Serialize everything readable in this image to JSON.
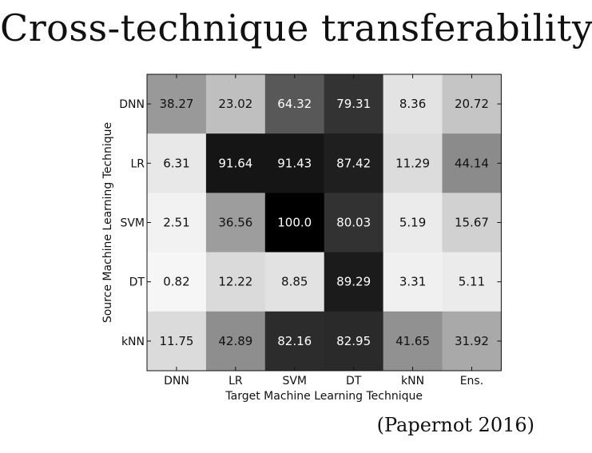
{
  "slide": {
    "title": "Cross-technique transferability",
    "citation": "(Papernot 2016)"
  },
  "chart_data": {
    "type": "heatmap",
    "title": "",
    "xlabel": "Target Machine Learning Technique",
    "ylabel": "Source Machine Learning Technique",
    "x_categories": [
      "DNN",
      "LR",
      "SVM",
      "DT",
      "kNN",
      "Ens."
    ],
    "y_categories": [
      "DNN",
      "LR",
      "SVM",
      "DT",
      "kNN"
    ],
    "values": [
      [
        38.27,
        23.02,
        64.32,
        79.31,
        8.36,
        20.72
      ],
      [
        6.31,
        91.64,
        91.43,
        87.42,
        11.29,
        44.14
      ],
      [
        2.51,
        36.56,
        100.0,
        80.03,
        5.19,
        15.67
      ],
      [
        0.82,
        12.22,
        8.85,
        89.29,
        3.31,
        5.11
      ],
      [
        11.75,
        42.89,
        82.16,
        82.95,
        41.65,
        31.92
      ]
    ],
    "value_labels": [
      [
        "38.27",
        "23.02",
        "64.32",
        "79.31",
        "8.36",
        "20.72"
      ],
      [
        "6.31",
        "91.64",
        "91.43",
        "87.42",
        "11.29",
        "44.14"
      ],
      [
        "2.51",
        "36.56",
        "100.0",
        "80.03",
        "5.19",
        "15.67"
      ],
      [
        "0.82",
        "12.22",
        "8.85",
        "89.29",
        "3.31",
        "5.11"
      ],
      [
        "11.75",
        "42.89",
        "82.16",
        "82.95",
        "41.65",
        "31.92"
      ]
    ],
    "colormap": "grayscale (higher value = darker)",
    "color_range": [
      0,
      100
    ]
  }
}
